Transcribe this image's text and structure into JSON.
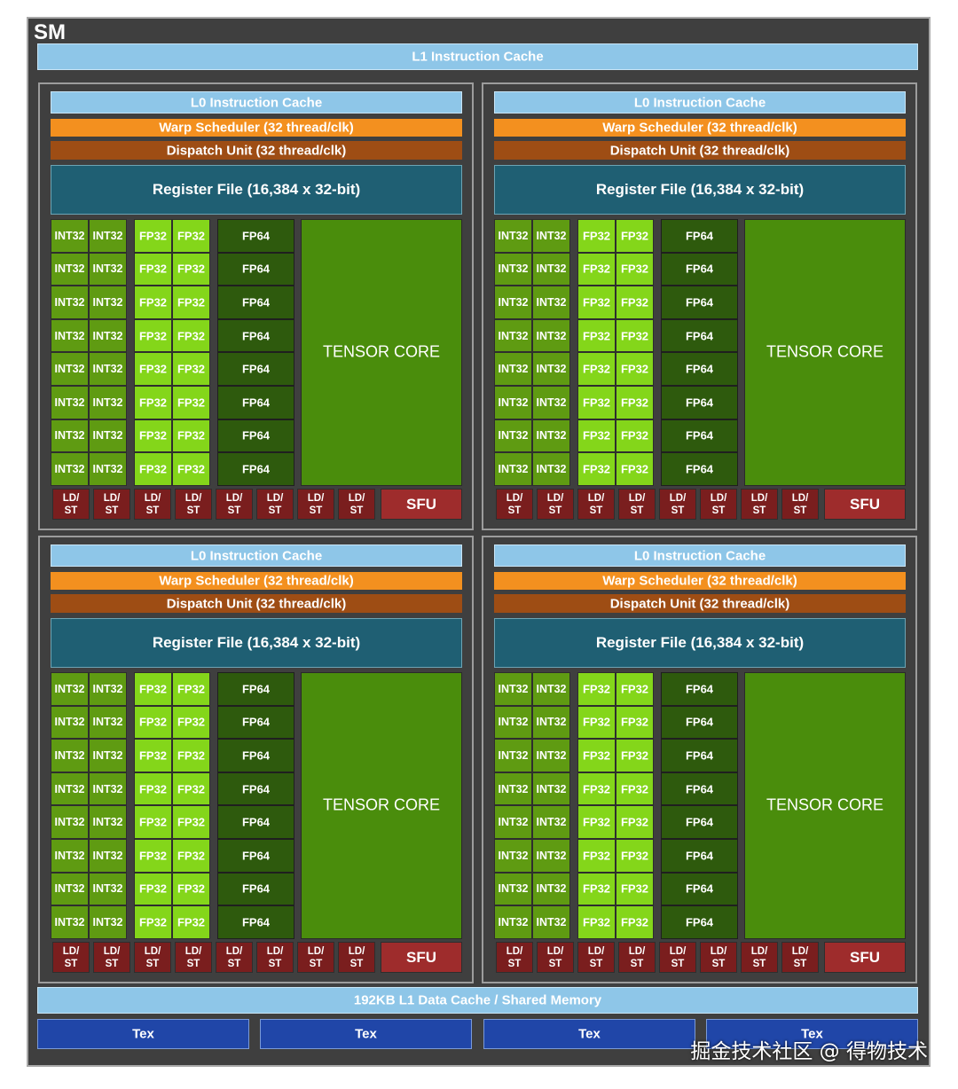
{
  "sm_title": "SM",
  "l1_instruction_cache": "L1 Instruction Cache",
  "processing_block": {
    "l0_cache": "L0 Instruction Cache",
    "warp_scheduler": "Warp Scheduler (32 thread/clk)",
    "dispatch_unit": "Dispatch Unit (32 thread/clk)",
    "register_file": "Register File (16,384 x 32-bit)",
    "int32": "INT32",
    "fp32": "FP32",
    "fp64": "FP64",
    "tensor_core": "TENSOR CORE",
    "ldst": "LD/\nST",
    "sfu": "SFU",
    "rows": 8,
    "ldst_units": 8
  },
  "block_count": 4,
  "l1_data_cache": "192KB L1 Data Cache / Shared Memory",
  "tex": [
    "Tex",
    "Tex",
    "Tex",
    "Tex"
  ],
  "watermark": "掘金技术社区 @ 得物技术",
  "colors": {
    "background": "#3f3f3f",
    "cache": "#8ec6e8",
    "warp_scheduler": "#f3901f",
    "dispatch": "#9e4d14",
    "register_file": "#1f5f73",
    "int32": "#5f9b12",
    "fp32": "#84d61a",
    "fp64": "#2e5a0d",
    "tensor_core": "#4a8d0c",
    "ldst": "#7a1e1e",
    "sfu": "#9e2c2c",
    "tex": "#2046a8"
  }
}
